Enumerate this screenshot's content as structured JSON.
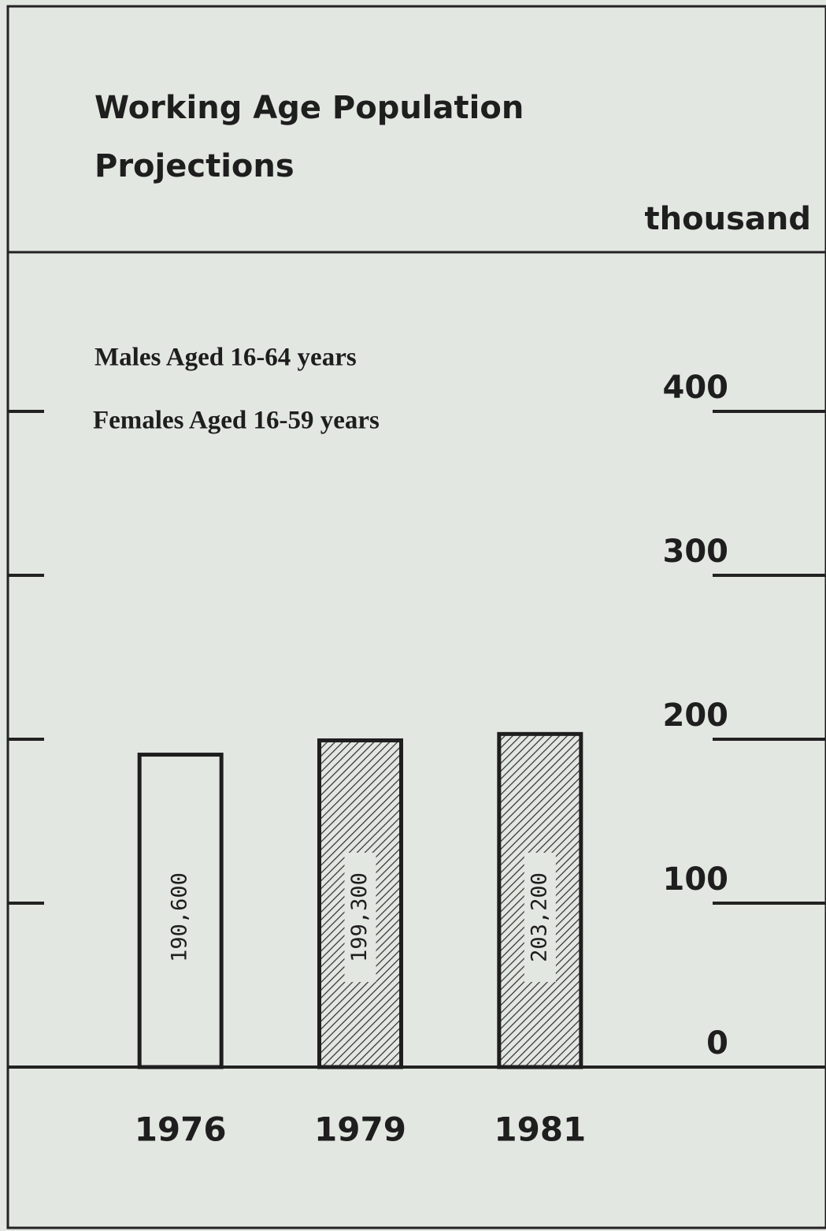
{
  "chart_data": {
    "type": "bar",
    "title": "Working Age Population Projections",
    "notes": [
      "Males Aged 16-64 years",
      "Females Aged 16-59 years"
    ],
    "y_label": "thousand",
    "categories": [
      "1976",
      "1979",
      "1981"
    ],
    "values": [
      190.6,
      199.3,
      203.2
    ],
    "value_labels": [
      "190,600",
      "199,300",
      "203,200"
    ],
    "patterns": [
      "none",
      "hatch",
      "hatch"
    ],
    "color": "#1e1e1e",
    "ylim": [
      0,
      400
    ],
    "yticks": [
      0,
      100,
      200,
      300,
      400
    ]
  }
}
